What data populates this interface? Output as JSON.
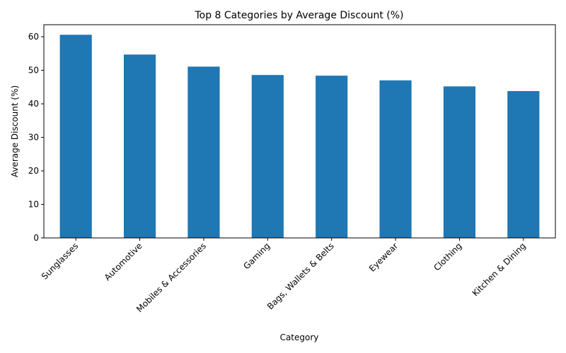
{
  "chart_data": {
    "type": "bar",
    "title": "Top 8 Categories by Average Discount (%)",
    "xlabel": "Category",
    "ylabel": "Average Discount (%)",
    "categories": [
      "Sunglasses",
      "Automotive",
      "Mobiles & Accessories",
      "Gaming",
      "Bags, Wallets & Belts",
      "Eyewear",
      "Clothing",
      "Kitchen & Dining"
    ],
    "values": [
      60.6,
      54.7,
      51.1,
      48.6,
      48.4,
      47.0,
      45.2,
      43.8
    ],
    "ylim": [
      0,
      63.6
    ],
    "yticks": [
      0,
      10,
      20,
      30,
      40,
      50,
      60
    ],
    "grid": false,
    "bar_color": "#1f77b4"
  }
}
